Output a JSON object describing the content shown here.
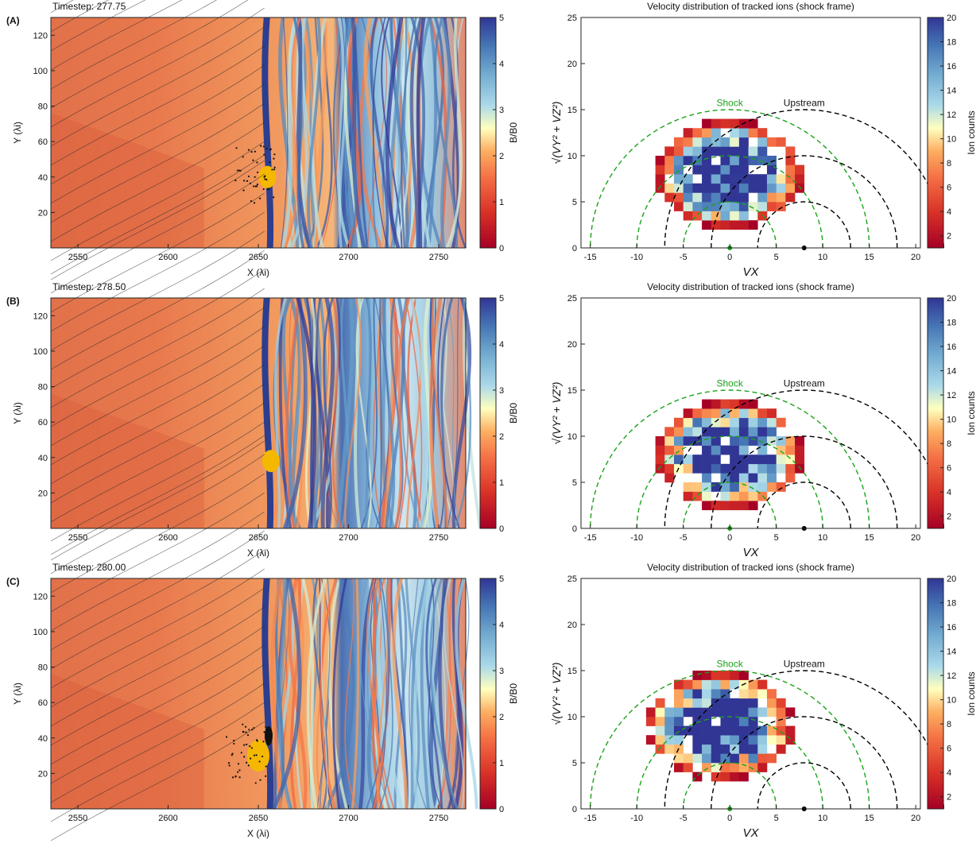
{
  "panels": [
    {
      "letter": "(A)",
      "timestep": "Timestep: 277.75",
      "field": {
        "cbar_label": "B/B0",
        "cbar_ticks": [
          "0",
          "1",
          "2",
          "3",
          "4",
          "5"
        ]
      },
      "dist": {
        "title": "Velocity distribution of tracked ions (shock frame)",
        "shock_label": "Shock",
        "upstream_label": "Upstream",
        "cbar_label": "Ion counts",
        "cbar_ticks": [
          "2",
          "4",
          "6",
          "8",
          "10",
          "12",
          "14",
          "16",
          "18",
          "20"
        ],
        "blob_seed": 11
      }
    },
    {
      "letter": "(B)",
      "timestep": "Timestep: 278.50",
      "field": {
        "cbar_label": "B/B0",
        "cbar_ticks": [
          "0",
          "1",
          "2",
          "3",
          "4",
          "5"
        ]
      },
      "dist": {
        "title": "Velocity distribution of tracked ions (shock frame)",
        "shock_label": "Shock",
        "upstream_label": "Upstream",
        "cbar_label": "Ion counts",
        "cbar_ticks": [
          "2",
          "4",
          "6",
          "8",
          "10",
          "12",
          "14",
          "16",
          "18",
          "20"
        ],
        "blob_seed": 23
      }
    },
    {
      "letter": "(C)",
      "timestep": "Timestep: 280.00",
      "field": {
        "cbar_label": "B/B0",
        "cbar_ticks": [
          "0",
          "1",
          "2",
          "3",
          "4",
          "5"
        ]
      },
      "dist": {
        "title": "Velocity distribution of tracked ions (shock frame)",
        "shock_label": "Shock",
        "upstream_label": "Upstream",
        "cbar_label": "Ion counts",
        "cbar_ticks": [
          "2",
          "4",
          "6",
          "8",
          "10",
          "12",
          "14",
          "16",
          "18",
          "20"
        ],
        "blob_seed": 37
      }
    }
  ],
  "field_axes": {
    "xlabel": "X (λi)",
    "ylabel": "Y (λi)",
    "xticks": [
      "2550",
      "2600",
      "2650",
      "2700",
      "2750"
    ],
    "yticks": [
      "20",
      "40",
      "60",
      "80",
      "100",
      "120"
    ]
  },
  "dist_axes": {
    "xlabel": "VX",
    "ylabel": "√(VY² + VZ²)",
    "xticks": [
      "-15",
      "-10",
      "-5",
      "0",
      "5",
      "10",
      "15",
      "20"
    ],
    "yticks": [
      "0",
      "5",
      "10",
      "15",
      "20",
      "25"
    ]
  },
  "chart_data": [
    {
      "type": "heatmap",
      "panel": "A",
      "title": "Timestep: 277.75",
      "xlabel": "X (λi)",
      "ylabel": "Y (λi)",
      "xlim": [
        2535,
        2765
      ],
      "ylim": [
        0,
        130
      ],
      "colorbar": {
        "label": "B/B0",
        "range": [
          0,
          5
        ]
      },
      "shock_x": 2660,
      "tracked_ions_center": [
        2655,
        40
      ]
    },
    {
      "type": "heatmap",
      "panel": "A",
      "title": "Velocity distribution of tracked ions (shock frame)",
      "xlabel": "VX",
      "ylabel": "√(VY² + VZ²)",
      "xlim": [
        -16,
        20.5
      ],
      "ylim": [
        0,
        25
      ],
      "colorbar": {
        "label": "Ion counts",
        "range": [
          1,
          20
        ]
      },
      "shock_circles": {
        "center": [
          0,
          0
        ],
        "radii": [
          5,
          10,
          15
        ]
      },
      "upstream_circles": {
        "center": [
          8,
          0
        ],
        "radii": [
          5,
          10,
          15
        ]
      }
    },
    {
      "type": "heatmap",
      "panel": "B",
      "title": "Timestep: 278.50",
      "xlabel": "X (λi)",
      "ylabel": "Y (λi)",
      "xlim": [
        2535,
        2765
      ],
      "ylim": [
        0,
        130
      ],
      "colorbar": {
        "label": "B/B0",
        "range": [
          0,
          5
        ]
      },
      "shock_x": 2660,
      "tracked_ions_center": [
        2657,
        38
      ]
    },
    {
      "type": "heatmap",
      "panel": "B",
      "title": "Velocity distribution of tracked ions (shock frame)",
      "xlabel": "VX",
      "ylabel": "√(VY² + VZ²)",
      "xlim": [
        -16,
        20.5
      ],
      "ylim": [
        0,
        25
      ],
      "colorbar": {
        "label": "Ion counts",
        "range": [
          1,
          20
        ]
      },
      "shock_circles": {
        "center": [
          0,
          0
        ],
        "radii": [
          5,
          10,
          15
        ]
      },
      "upstream_circles": {
        "center": [
          8,
          0
        ],
        "radii": [
          5,
          10,
          15
        ]
      }
    },
    {
      "type": "heatmap",
      "panel": "C",
      "title": "Timestep: 280.00",
      "xlabel": "X (λi)",
      "ylabel": "Y (λi)",
      "xlim": [
        2535,
        2765
      ],
      "ylim": [
        0,
        130
      ],
      "colorbar": {
        "label": "B/B0",
        "range": [
          0,
          5
        ]
      },
      "shock_x": 2660,
      "tracked_ions_center": [
        2650,
        30
      ]
    },
    {
      "type": "heatmap",
      "panel": "C",
      "title": "Velocity distribution of tracked ions (shock frame)",
      "xlabel": "VX",
      "ylabel": "√(VY² + VZ²)",
      "xlim": [
        -16,
        20.5
      ],
      "ylim": [
        0,
        25
      ],
      "colorbar": {
        "label": "Ion counts",
        "range": [
          1,
          20
        ]
      },
      "shock_circles": {
        "center": [
          0,
          0
        ],
        "radii": [
          5,
          10,
          15
        ]
      },
      "upstream_circles": {
        "center": [
          8,
          0
        ],
        "radii": [
          5,
          10,
          15
        ]
      }
    }
  ]
}
